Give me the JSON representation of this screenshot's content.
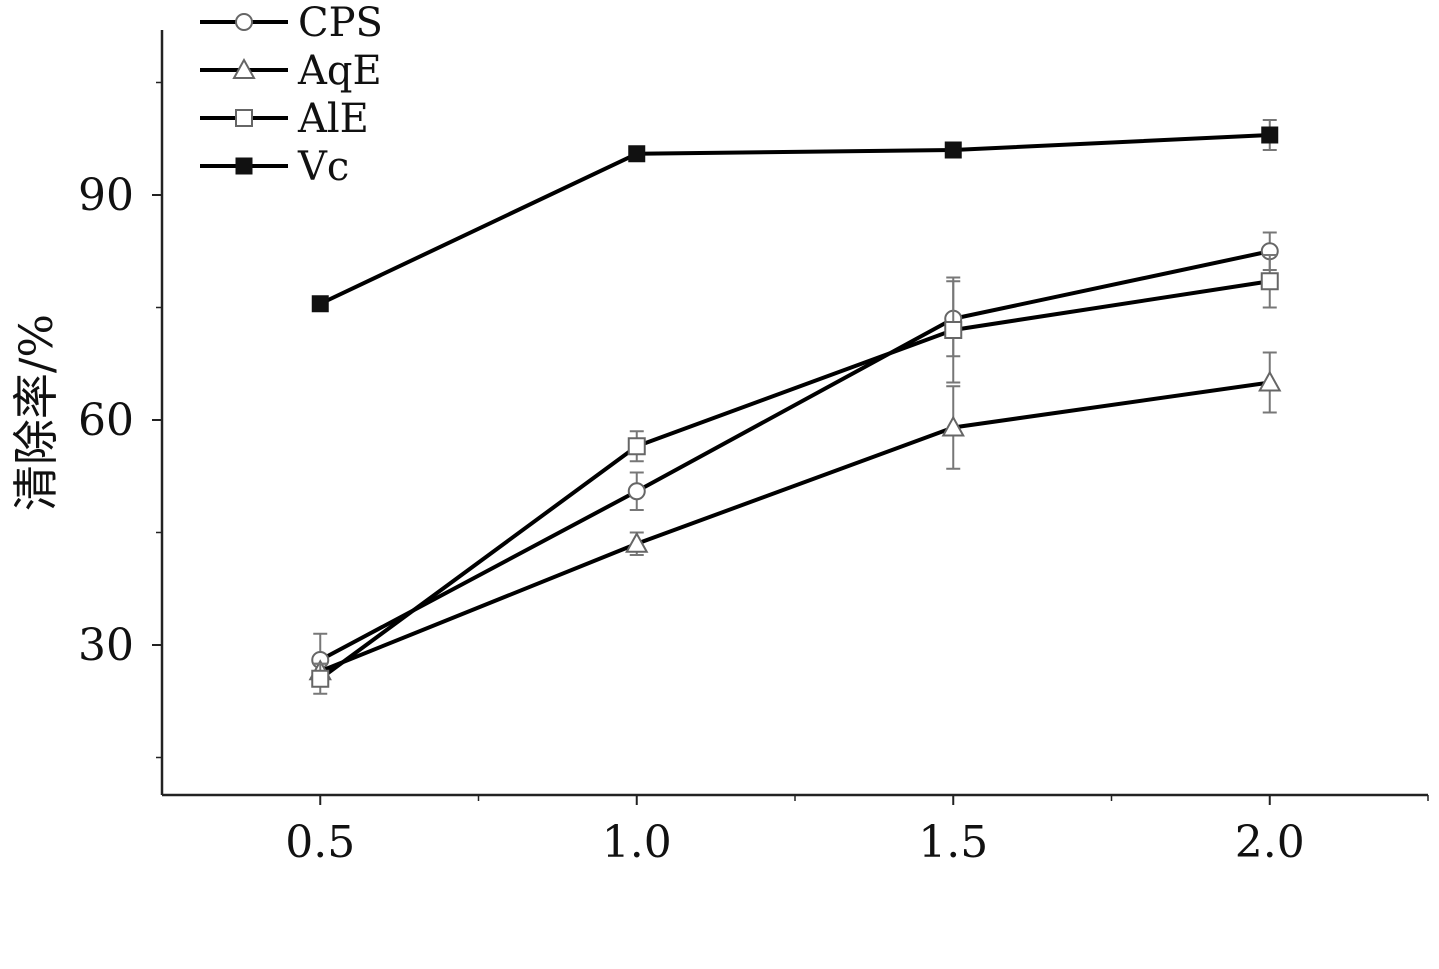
{
  "chart_data": {
    "type": "line",
    "x": [
      0.5,
      1.0,
      1.5,
      2.0
    ],
    "xticks": [
      "0.5",
      "1.0",
      "1.5",
      "2.0"
    ],
    "xlim": [
      0.25,
      2.25
    ],
    "xlabel": "",
    "ylabel": "清除率/%",
    "ylim": [
      10,
      112
    ],
    "yticks": [
      30,
      60,
      90
    ],
    "grid": false,
    "legend_position": "top-left",
    "series": [
      {
        "name": "CPS",
        "marker": "circle-open",
        "color": "#000000",
        "values": [
          28.0,
          50.5,
          73.5,
          82.5
        ],
        "errors": [
          3.5,
          2.5,
          5.0,
          2.5
        ]
      },
      {
        "name": "AqE",
        "marker": "triangle-open",
        "color": "#000000",
        "values": [
          26.5,
          43.5,
          59.0,
          65.0
        ],
        "errors": [
          1.0,
          1.5,
          5.5,
          4.0
        ]
      },
      {
        "name": "AlE",
        "marker": "square-open",
        "color": "#000000",
        "values": [
          25.5,
          56.5,
          72.0,
          78.5
        ],
        "errors": [
          2.0,
          2.0,
          7.0,
          3.5
        ]
      },
      {
        "name": "Vc",
        "marker": "square-filled",
        "color": "#000000",
        "values": [
          75.5,
          95.5,
          96.0,
          98.0
        ],
        "errors": [
          0.5,
          0.5,
          0.5,
          2.0
        ]
      }
    ]
  }
}
